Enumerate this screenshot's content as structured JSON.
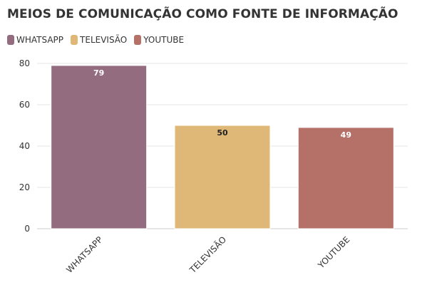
{
  "chart_data": {
    "type": "bar",
    "title": "MEIOS DE COMUNICAÇÃO COMO FONTE DE INFORMAÇÃO",
    "categories": [
      "WHATSAPP",
      "TELEVISÃO",
      "YOUTUBE"
    ],
    "values": [
      79,
      50,
      49
    ],
    "data_labels": [
      "79",
      "50",
      "49"
    ],
    "colors": [
      "#946c80",
      "#dfb877",
      "#b57068"
    ],
    "label_colors": [
      "#ffffff",
      "#222222",
      "#ffffff"
    ],
    "legend": {
      "position": "top-left",
      "entries": [
        "WHATSAPP",
        "TELEVISÃO",
        "YOUTUBE"
      ]
    },
    "xlabel": "",
    "ylabel": "",
    "ylim": [
      0,
      80
    ],
    "yticks": [
      0,
      20,
      40,
      60,
      80
    ],
    "grid": true
  }
}
